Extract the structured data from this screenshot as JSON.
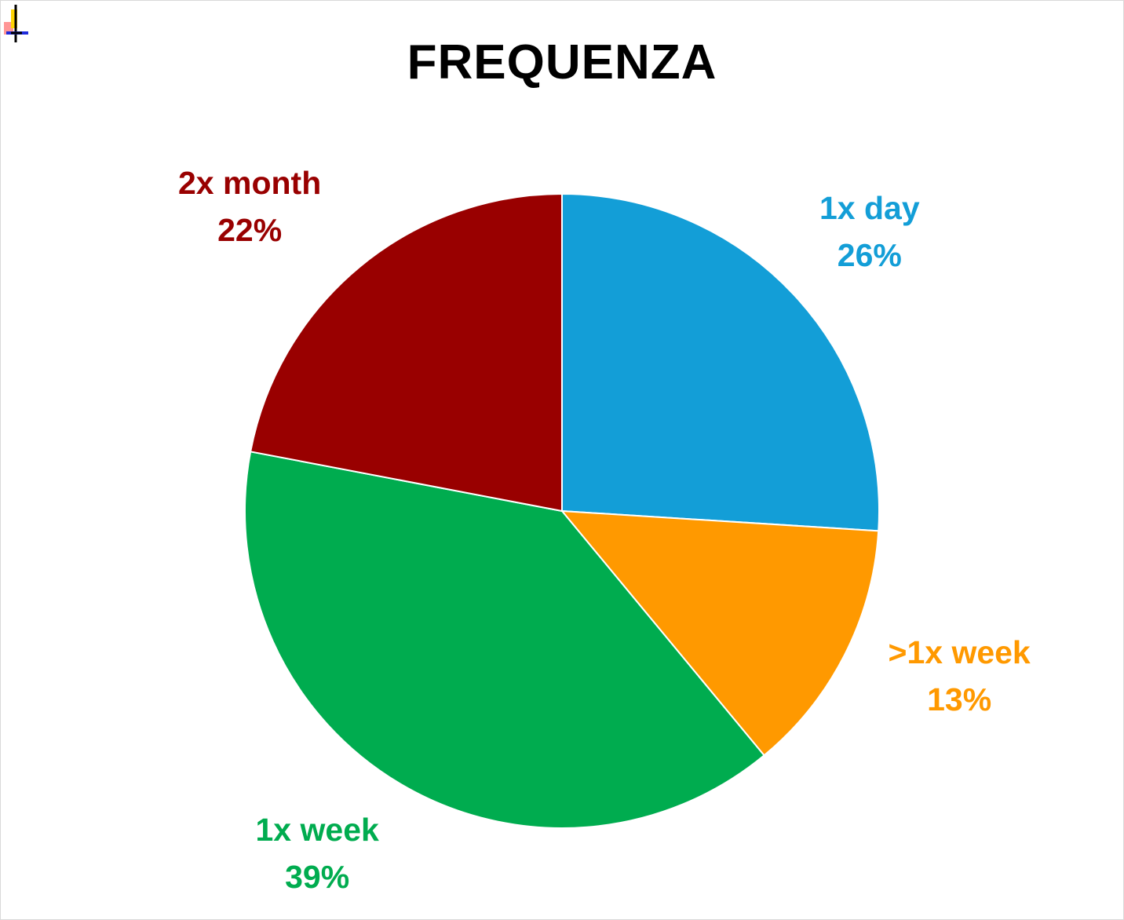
{
  "chart_data": {
    "type": "pie",
    "title": "FREQUENZA",
    "start_angle_deg": 0,
    "direction": "clockwise",
    "slices": [
      {
        "label": "1x day",
        "value": 26,
        "value_label": "26%",
        "color": "#139ed7"
      },
      {
        "label": ">1x week",
        "value": 13,
        "value_label": "13%",
        "color": "#ff9900"
      },
      {
        "label": "1x week",
        "value": 39,
        "value_label": "39%",
        "color": "#00ac4f"
      },
      {
        "label": "2x month",
        "value": 22,
        "value_label": "22%",
        "color": "#990000"
      }
    ]
  }
}
